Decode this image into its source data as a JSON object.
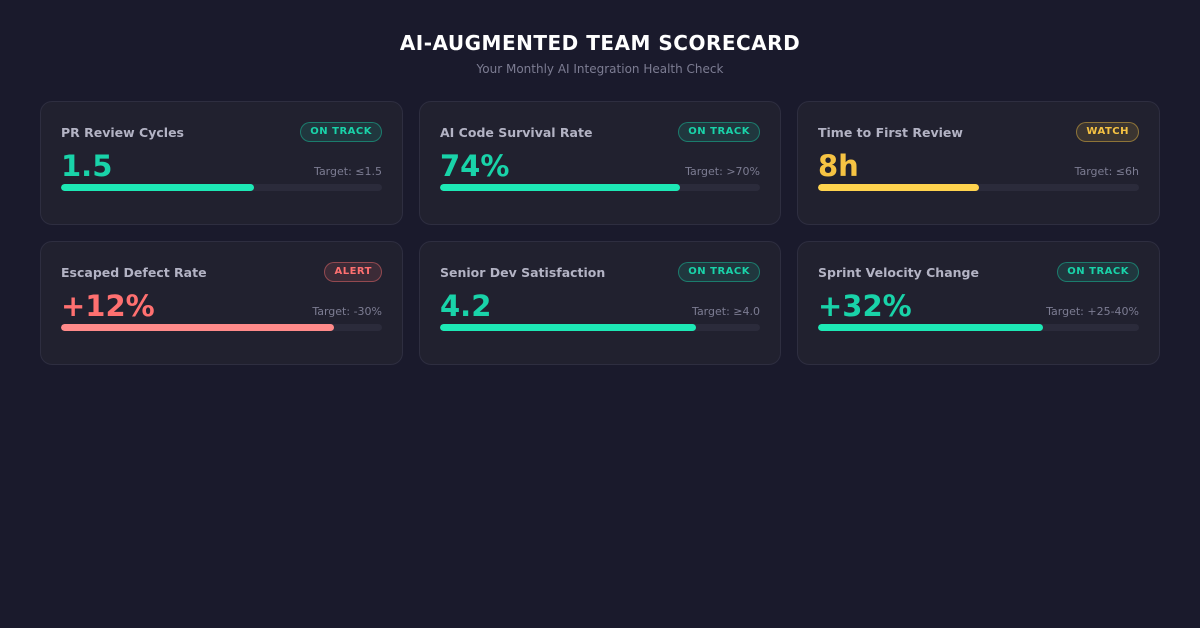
{
  "header": {
    "title": "AI-AUGMENTED TEAM SCORECARD",
    "subtitle": "Your Monthly AI Integration Health Check"
  },
  "colors": {
    "background": "#1a1a2c",
    "on_track": "#19d3a9",
    "watch": "#f6c343",
    "alert": "#ff7070"
  },
  "metrics": [
    {
      "name": "PR Review Cycles",
      "status": "ON TRACK",
      "status_type": "on-track",
      "value": "1.5",
      "target": "Target: ≤1.5",
      "progress": 0.6
    },
    {
      "name": "AI Code Survival Rate",
      "status": "ON TRACK",
      "status_type": "on-track",
      "value": "74%",
      "target": "Target: >70%",
      "progress": 0.75
    },
    {
      "name": "Time to First Review",
      "status": "WATCH",
      "status_type": "watch",
      "value": "8h",
      "target": "Target: ≤6h",
      "progress": 0.5
    },
    {
      "name": "Escaped Defect Rate",
      "status": "ALERT",
      "status_type": "alert",
      "value": "+12%",
      "target": "Target: -30%",
      "progress": 0.85
    },
    {
      "name": "Senior Dev Satisfaction",
      "status": "ON TRACK",
      "status_type": "on-track",
      "value": "4.2",
      "target": "Target: ≥4.0",
      "progress": 0.8
    },
    {
      "name": "Sprint Velocity Change",
      "status": "ON TRACK",
      "status_type": "on-track",
      "value": "+32%",
      "target": "Target: +25-40%",
      "progress": 0.7
    }
  ]
}
